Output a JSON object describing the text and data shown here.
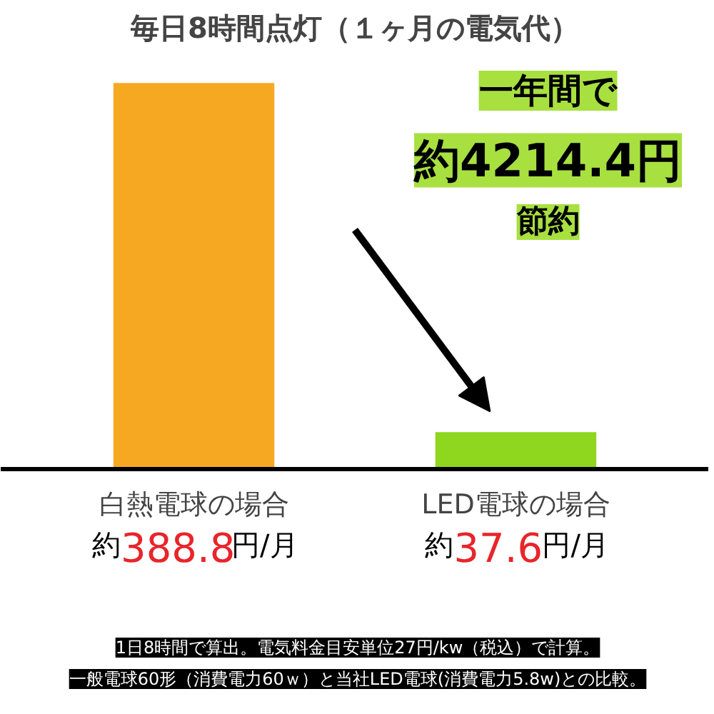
{
  "chart_data": {
    "type": "bar",
    "title": "毎日8時間点灯（１ヶ月の電気代）",
    "categories": [
      "白熱電球の場合",
      "LED電球の場合"
    ],
    "values": [
      388.8,
      37.6
    ],
    "colors": [
      "#f7a823",
      "#8fd61e"
    ],
    "value_labels": [
      "約388.8円/月",
      "約37.6円/月"
    ],
    "grid": false,
    "annotations": [
      "一年間で",
      "約4214.4円",
      "節約",
      "1日8時間で算出。電気料金目安単位27円/kw（税込）で計算。",
      "一般電球60形（消費電力60ｗ）と当社LED電球(消費電力5.8w)との比較。"
    ]
  }
}
